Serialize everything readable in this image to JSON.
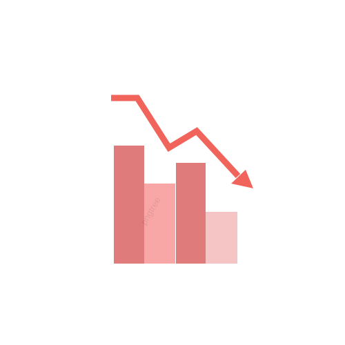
{
  "watermark": "pngtree"
}
